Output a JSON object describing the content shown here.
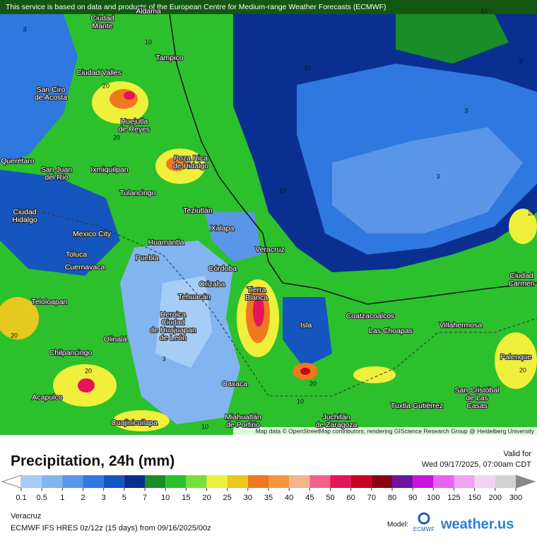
{
  "notice": "This service is based on data and products of the European Centre for Medium-range Weather Forecasts (ECMWF)",
  "map": {
    "labels": [
      [
        "Aldama"
      ],
      [
        "Ciudad",
        "Mante"
      ],
      [
        "Tampico"
      ],
      [
        "Ciudad Valles"
      ],
      [
        "San Ciro",
        "de Acosta"
      ],
      [
        "Huejutla",
        "de Reyes"
      ],
      [
        "Poza Rica",
        "de Hidalgo"
      ],
      [
        "Ixmiquilpan"
      ],
      [
        "San Juan",
        "del Río"
      ],
      [
        "Querétaro"
      ],
      [
        "Tulancingo"
      ],
      [
        "Teziutlán"
      ],
      [
        "Ciudad",
        "Hidalgo"
      ],
      [
        "Xalapa"
      ],
      [
        "Mexico City"
      ],
      [
        "Huamantla"
      ],
      [
        "Veracruz"
      ],
      [
        "Toluca"
      ],
      [
        "Puebla"
      ],
      [
        "Cuernavaca"
      ],
      [
        "Córdoba"
      ],
      [
        "Orizaba"
      ],
      [
        "Tierra",
        "Blanca"
      ],
      [
        "Tehuacán"
      ],
      [
        "Teloloapan"
      ],
      [
        "Heroica",
        "Ciudad",
        "de Huajuapan",
        "de León"
      ],
      [
        "Coatzacoalcos"
      ],
      [
        "Isla"
      ],
      [
        "Las Choapas"
      ],
      [
        "Villahermosa"
      ],
      [
        "Ciudad",
        "Carmen"
      ],
      [
        "Olinalá"
      ],
      [
        "Chilpancingo"
      ],
      [
        "Palenque"
      ],
      [
        "Oaxaca"
      ],
      [
        "San Cristóbal",
        "de Las",
        "Casas"
      ],
      [
        "Acapulco"
      ],
      [
        "Tuxtla Gutiérrez"
      ],
      [
        "Miahuatlán",
        "de Porfirio"
      ],
      [
        "Juchitán",
        "de Zaragoza"
      ],
      [
        "Cuajinicuilapa"
      ]
    ],
    "contour_labels": [
      "10",
      "3",
      "20",
      "10",
      "10",
      "3",
      "3",
      "3",
      "20",
      "10",
      "20",
      "20",
      "3",
      "20",
      "10",
      "20",
      "20",
      "10"
    ],
    "attribution": "Map data © OpenStreetMap contributors, rendering GIScience Research Group @ Heidelberg University"
  },
  "legend": {
    "title": "Precipitation, 24h (mm)",
    "valid_label": "Valid for",
    "valid_time": "Wed 09/17/2025, 07:00am CDT",
    "ticks": [
      0.1,
      0.5,
      1,
      2,
      3,
      5,
      7,
      10,
      15,
      20,
      25,
      30,
      35,
      40,
      45,
      50,
      60,
      70,
      80,
      90,
      100,
      125,
      150,
      200,
      300
    ],
    "colors": [
      "#a6cdf5",
      "#82b4f0",
      "#5a96e8",
      "#2f78e0",
      "#1455c0",
      "#0a2f90",
      "#1a8c28",
      "#2cc02c",
      "#78e03c",
      "#f0f03c",
      "#e6c81e",
      "#f0781e",
      "#f5963c",
      "#f5b48c",
      "#f0648c",
      "#e6145a",
      "#c8001e",
      "#8c0014",
      "#6e14a0",
      "#c814dc",
      "#e664f0",
      "#f0a0f5",
      "#f5d2f5",
      "#d2d2d2"
    ]
  },
  "footer": {
    "region": "Veracruz",
    "model_run": "ECMWF IFS HRES 0z/12z (15 days) from 09/16/2025/00z",
    "model_label": "Model:",
    "model_logo": "ECMWF",
    "brand": "weather.us"
  }
}
